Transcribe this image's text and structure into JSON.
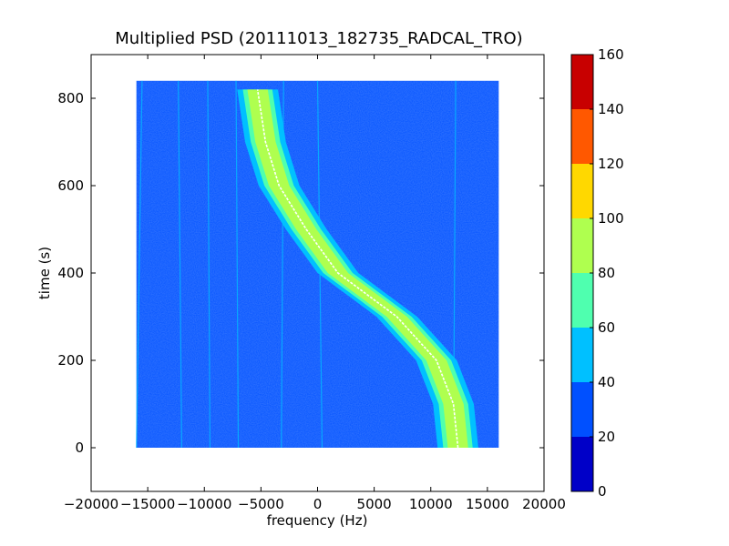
{
  "chart_data": {
    "type": "heatmap",
    "title": "Multiplied PSD (20111013_182735_RADCAL_TRO)",
    "xlabel": "frequency (Hz)",
    "ylabel": "time (s)",
    "xlim": [
      -20000,
      20000
    ],
    "ylim": [
      -100,
      900
    ],
    "xticks": [
      -20000,
      -15000,
      -10000,
      -5000,
      0,
      5000,
      10000,
      15000,
      20000
    ],
    "xtick_labels": [
      "−20000",
      "−15000",
      "−10000",
      "−5000",
      "0",
      "5000",
      "10000",
      "15000",
      "20000"
    ],
    "yticks": [
      0,
      200,
      400,
      600,
      800
    ],
    "ytick_labels": [
      "0",
      "200",
      "400",
      "600",
      "800"
    ],
    "data_extent": {
      "x": [
        -16000,
        16000
      ],
      "y": [
        0,
        840
      ]
    },
    "background_level_color": "#0050ff",
    "signal_track": {
      "time": [
        0,
        100,
        200,
        300,
        400,
        500,
        600,
        700,
        820
      ],
      "center_freq": [
        12400,
        12000,
        10500,
        7000,
        1800,
        -1000,
        -3400,
        -4600,
        -5300
      ],
      "half_widths_by_band": {
        "40-60": 1800,
        "60-80": 1300,
        "80-100": 900
      },
      "peak_line_color": "#ffffff"
    },
    "faint_lines": [
      {
        "freq0": -16000,
        "freq1": -15500
      },
      {
        "freq0": -12000,
        "freq1": -12300
      },
      {
        "freq0": -9500,
        "freq1": -9700
      },
      {
        "freq0": -7000,
        "freq1": -7200
      },
      {
        "freq0": -3200,
        "freq1": -3000
      },
      {
        "freq0": 400,
        "freq1": 0
      },
      {
        "freq0": 12000,
        "freq1": 12200
      }
    ],
    "colorbar": {
      "levels": [
        0,
        20,
        40,
        60,
        80,
        100,
        120,
        140,
        160
      ],
      "tick_labels": [
        "0",
        "20",
        "40",
        "60",
        "80",
        "100",
        "120",
        "140",
        "160"
      ],
      "colors": [
        "#0000c8",
        "#0050ff",
        "#00c0ff",
        "#4fffaf",
        "#afff4f",
        "#ffd800",
        "#ff5800",
        "#c80000"
      ]
    }
  }
}
